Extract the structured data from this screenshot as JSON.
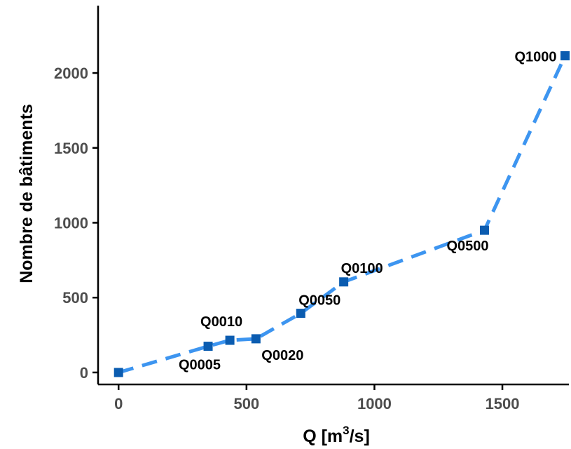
{
  "chart_data": {
    "type": "line",
    "title": "",
    "xlabel": "Q [m³/s]",
    "xlabel_base": "Q [m",
    "xlabel_sup": "3",
    "xlabel_tail": "/s]",
    "ylabel": "Nombre de bâtiments",
    "xlim": [
      -80,
      1760
    ],
    "ylim": [
      -80,
      2450
    ],
    "xticks": [
      0,
      500,
      1000,
      1500
    ],
    "yticks": [
      0,
      500,
      1000,
      1500,
      2000
    ],
    "grid": false,
    "series": [
      {
        "x": [
          0,
          350,
          435,
          537,
          712,
          880,
          1430,
          1745
        ],
        "y": [
          0,
          175,
          215,
          225,
          395,
          605,
          950,
          2115
        ],
        "labels": [
          "",
          "Q0005",
          "Q0010",
          "Q0020",
          "Q0050",
          "Q0100",
          "Q0500",
          "Q1000"
        ]
      }
    ],
    "colors": {
      "line": "#3d95f0",
      "marker": "#0b5cb0",
      "axis": "#000000",
      "ticks_text": "#4d4d4d"
    }
  }
}
